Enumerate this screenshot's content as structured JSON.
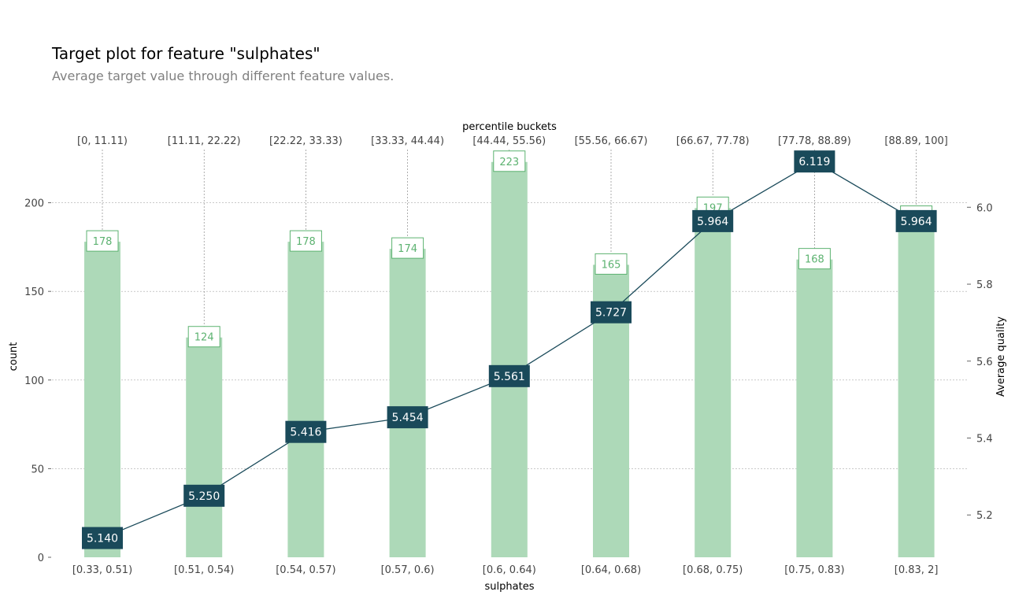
{
  "title": "Target plot for feature \"sulphates\"",
  "subtitle": "Average target value through different feature values.",
  "colors": {
    "bar": "#add9b8",
    "bar_label": "#5cb270",
    "line": "#1a4a5a",
    "point_box": "#1a4a5a",
    "grid": "#aaaaaa"
  },
  "chart_data": {
    "type": "bar",
    "title": "Target plot for feature \"sulphates\"",
    "subtitle": "Average target value through different feature values.",
    "xlabel": "sulphates",
    "ylabel": "count",
    "y2label": "Average quality",
    "top_axis_label": "percentile buckets",
    "categories": [
      "[0.33, 0.51)",
      "[0.51, 0.54)",
      "[0.54, 0.57)",
      "[0.57, 0.6)",
      "[0.6, 0.64)",
      "[0.64, 0.68)",
      "[0.68, 0.75)",
      "[0.75, 0.83)",
      "[0.83, 2]"
    ],
    "percentile_buckets": [
      "[0, 11.11)",
      "[11.11, 22.22)",
      "[22.22, 33.33)",
      "[33.33, 44.44)",
      "[44.44, 55.56)",
      "[55.56, 66.67)",
      "[66.67, 77.78)",
      "[77.78, 88.89)",
      "[88.89, 100]"
    ],
    "series": [
      {
        "name": "count",
        "type": "bar",
        "axis": "left",
        "values": [
          178,
          124,
          178,
          174,
          223,
          165,
          197,
          168,
          192
        ]
      },
      {
        "name": "Average quality",
        "type": "line",
        "axis": "right",
        "values": [
          5.14,
          5.25,
          5.416,
          5.454,
          5.561,
          5.727,
          5.964,
          6.119,
          5.964
        ]
      }
    ],
    "bar_labels": [
      "178",
      "124",
      "178",
      "174",
      "223",
      "165",
      "197",
      "168",
      "192"
    ],
    "line_labels": [
      "5.140",
      "5.250",
      "5.416",
      "5.454",
      "5.561",
      "5.727",
      "5.964",
      "6.119",
      "5.964"
    ],
    "ylim": [
      0,
      230
    ],
    "y_ticks": [
      0,
      50,
      100,
      150,
      200
    ],
    "y_tick_labels": [
      "0",
      "50",
      "100",
      "150",
      "200"
    ],
    "y2lim": [
      5.09,
      6.15
    ],
    "y2_ticks": [
      5.2,
      5.4,
      5.6,
      5.8,
      6.0
    ],
    "y2_tick_labels": [
      "5.2",
      "5.4",
      "5.6",
      "5.8",
      "6.0"
    ],
    "grid": true,
    "legend": "none"
  }
}
